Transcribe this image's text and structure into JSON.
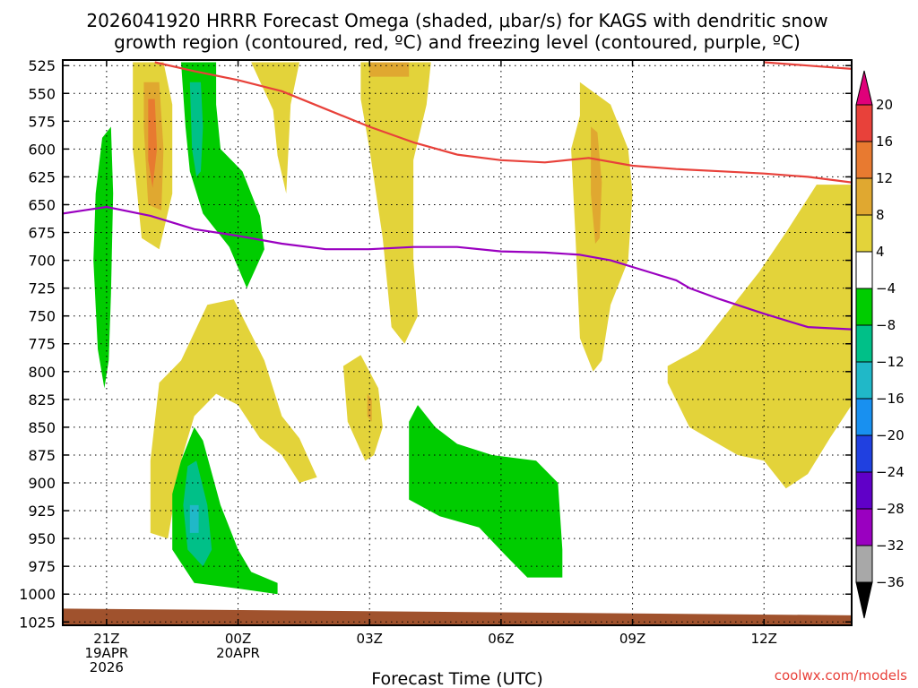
{
  "chart_data": {
    "type": "heatmap",
    "title_line1": "2026041920 HRRR Forecast Omega (shaded, μbar/s) for KAGS with dendritic snow",
    "title_line2": "growth region (contoured, red, ºC) and freezing level (contoured, purple, ºC)",
    "xlabel": "Forecast Time (UTC)",
    "credit": "coolwx.com/models",
    "x_range_hours": [
      -1.0,
      17.0
    ],
    "x_ticks": [
      {
        "hour": 0,
        "lines": [
          "21Z",
          "19APR",
          "2026"
        ]
      },
      {
        "hour": 3,
        "lines": [
          "00Z",
          "20APR"
        ]
      },
      {
        "hour": 6,
        "lines": [
          "03Z"
        ]
      },
      {
        "hour": 9,
        "lines": [
          "06Z"
        ]
      },
      {
        "hour": 12,
        "lines": [
          "09Z"
        ]
      },
      {
        "hour": 15,
        "lines": [
          "12Z"
        ]
      }
    ],
    "y_levels_hpa": [
      525,
      550,
      575,
      600,
      625,
      650,
      675,
      700,
      725,
      750,
      775,
      800,
      825,
      850,
      875,
      900,
      925,
      950,
      975,
      1000,
      1025
    ],
    "y_range_hpa": [
      520,
      1028
    ],
    "colorbar": {
      "labels": [
        "20",
        "16",
        "12",
        "8",
        "4",
        "−4",
        "−8",
        "−12",
        "−16",
        "−20",
        "−24",
        "−28",
        "−32",
        "−36"
      ],
      "colors": [
        "#e8413a",
        "#e87a30",
        "#e0a830",
        "#e3d33a",
        "#ffffff",
        "#00cc00",
        "#00c088",
        "#20b8c8",
        "#1890f0",
        "#2040e0",
        "#6000c8",
        "#9a00c0",
        "#a8a8a8"
      ],
      "top_arrow_color": "#e0007a",
      "bottom_arrow_color": "#000000"
    },
    "shaded_regions": [
      {
        "name": "yellow-a",
        "omega": 6,
        "color": "#e3d33a",
        "points": [
          [
            0.6,
            522
          ],
          [
            1.3,
            522
          ],
          [
            1.5,
            560
          ],
          [
            1.5,
            640
          ],
          [
            1.2,
            690
          ],
          [
            0.8,
            680
          ],
          [
            0.6,
            600
          ]
        ]
      },
      {
        "name": "orange-a",
        "omega": 10,
        "color": "#e0a830",
        "points": [
          [
            0.85,
            540
          ],
          [
            1.2,
            540
          ],
          [
            1.3,
            600
          ],
          [
            1.25,
            655
          ],
          [
            0.95,
            650
          ],
          [
            0.85,
            580
          ]
        ]
      },
      {
        "name": "dark-orange-a",
        "omega": 14,
        "color": "#e87a30",
        "points": [
          [
            0.95,
            555
          ],
          [
            1.1,
            555
          ],
          [
            1.15,
            600
          ],
          [
            1.05,
            635
          ],
          [
            0.95,
            610
          ]
        ]
      },
      {
        "name": "yellow-b",
        "omega": 5,
        "color": "#e3d33a",
        "points": [
          [
            3.3,
            522
          ],
          [
            4.4,
            522
          ],
          [
            4.2,
            560
          ],
          [
            4.1,
            640
          ],
          [
            3.9,
            606
          ],
          [
            3.8,
            565
          ]
        ]
      },
      {
        "name": "yellow-c",
        "omega": 5,
        "color": "#e3d33a",
        "points": [
          [
            5.8,
            522
          ],
          [
            7.4,
            522
          ],
          [
            7.3,
            560
          ],
          [
            7.0,
            610
          ],
          [
            7.0,
            700
          ],
          [
            7.1,
            750
          ],
          [
            6.8,
            775
          ],
          [
            6.5,
            760
          ],
          [
            6.3,
            680
          ],
          [
            6.0,
            600
          ],
          [
            5.8,
            555
          ]
        ]
      },
      {
        "name": "orange-c",
        "omega": 9,
        "color": "#e0a830",
        "points": [
          [
            6.0,
            522
          ],
          [
            6.9,
            522
          ],
          [
            6.9,
            535
          ],
          [
            6.0,
            535
          ]
        ]
      },
      {
        "name": "yellow-d",
        "omega": 5,
        "color": "#e3d33a",
        "points": [
          [
            10.8,
            540
          ],
          [
            11.5,
            560
          ],
          [
            11.9,
            600
          ],
          [
            12.0,
            640
          ],
          [
            11.9,
            700
          ],
          [
            11.5,
            740
          ],
          [
            11.3,
            790
          ],
          [
            11.1,
            800
          ],
          [
            10.8,
            770
          ],
          [
            10.7,
            680
          ],
          [
            10.6,
            600
          ],
          [
            10.8,
            570
          ]
        ]
      },
      {
        "name": "orange-d",
        "omega": 9,
        "color": "#e0a830",
        "points": [
          [
            11.05,
            580
          ],
          [
            11.2,
            585
          ],
          [
            11.3,
            630
          ],
          [
            11.25,
            680
          ],
          [
            11.15,
            685
          ],
          [
            11.05,
            640
          ]
        ]
      },
      {
        "name": "yellow-e",
        "omega": 5,
        "color": "#e3d33a",
        "points": [
          [
            1.7,
            790
          ],
          [
            2.3,
            740
          ],
          [
            2.9,
            735
          ],
          [
            3.6,
            790
          ],
          [
            4.0,
            840
          ],
          [
            4.4,
            860
          ],
          [
            4.8,
            895
          ],
          [
            4.4,
            900
          ],
          [
            4.0,
            875
          ],
          [
            3.5,
            860
          ],
          [
            3.0,
            830
          ],
          [
            2.5,
            820
          ],
          [
            2.0,
            840
          ],
          [
            1.7,
            880
          ],
          [
            1.4,
            950
          ],
          [
            1.0,
            945
          ],
          [
            1.0,
            880
          ],
          [
            1.2,
            810
          ]
        ]
      },
      {
        "name": "yellow-f",
        "omega": 5,
        "color": "#e3d33a",
        "points": [
          [
            5.4,
            795
          ],
          [
            5.8,
            785
          ],
          [
            6.2,
            815
          ],
          [
            6.3,
            850
          ],
          [
            6.1,
            875
          ],
          [
            5.9,
            880
          ],
          [
            5.5,
            845
          ]
        ]
      },
      {
        "name": "orange-f",
        "omega": 9,
        "color": "#e0a830",
        "points": [
          [
            5.95,
            820
          ],
          [
            6.05,
            825
          ],
          [
            6.05,
            845
          ],
          [
            5.95,
            840
          ]
        ]
      },
      {
        "name": "yellow-g",
        "omega": 5,
        "color": "#e3d33a",
        "points": [
          [
            17.0,
            632
          ],
          [
            16.2,
            632
          ],
          [
            15.5,
            675
          ],
          [
            14.9,
            710
          ],
          [
            14.3,
            740
          ],
          [
            13.5,
            780
          ],
          [
            12.8,
            795
          ],
          [
            12.8,
            810
          ],
          [
            13.3,
            850
          ],
          [
            14.4,
            875
          ],
          [
            15.0,
            880
          ],
          [
            15.5,
            905
          ],
          [
            16.0,
            892
          ],
          [
            16.5,
            860
          ],
          [
            17.0,
            830
          ]
        ]
      },
      {
        "name": "green-a",
        "omega": -6,
        "color": "#00cc00",
        "points": [
          [
            -0.1,
            590
          ],
          [
            0.1,
            580
          ],
          [
            0.15,
            640
          ],
          [
            0.1,
            730
          ],
          [
            0.05,
            790
          ],
          [
            -0.05,
            815
          ],
          [
            -0.2,
            780
          ],
          [
            -0.3,
            700
          ],
          [
            -0.25,
            640
          ]
        ]
      },
      {
        "name": "green-b",
        "omega": -6,
        "color": "#00cc00",
        "points": [
          [
            1.7,
            522
          ],
          [
            2.5,
            522
          ],
          [
            2.5,
            560
          ],
          [
            2.6,
            600
          ],
          [
            3.1,
            620
          ],
          [
            3.5,
            660
          ],
          [
            3.6,
            690
          ],
          [
            3.2,
            725
          ],
          [
            2.8,
            688
          ],
          [
            2.2,
            658
          ],
          [
            1.9,
            620
          ],
          [
            1.8,
            580
          ]
        ]
      },
      {
        "name": "teal-b",
        "omega": -10,
        "color": "#00c088",
        "points": [
          [
            1.9,
            540
          ],
          [
            2.15,
            540
          ],
          [
            2.2,
            580
          ],
          [
            2.15,
            620
          ],
          [
            2.05,
            625
          ],
          [
            1.95,
            600
          ]
        ]
      },
      {
        "name": "green-c",
        "omega": -6,
        "color": "#00cc00",
        "points": [
          [
            2.0,
            850
          ],
          [
            2.2,
            862
          ],
          [
            2.6,
            920
          ],
          [
            3.0,
            960
          ],
          [
            3.3,
            980
          ],
          [
            3.9,
            990
          ],
          [
            3.9,
            1000
          ],
          [
            3.0,
            995
          ],
          [
            2.0,
            990
          ],
          [
            1.5,
            960
          ],
          [
            1.5,
            910
          ],
          [
            1.7,
            880
          ]
        ]
      },
      {
        "name": "teal-c",
        "omega": -10,
        "color": "#00c088",
        "points": [
          [
            1.85,
            885
          ],
          [
            2.05,
            880
          ],
          [
            2.3,
            920
          ],
          [
            2.4,
            960
          ],
          [
            2.2,
            975
          ],
          [
            1.85,
            960
          ],
          [
            1.75,
            920
          ]
        ]
      },
      {
        "name": "cyan-c",
        "omega": -13,
        "color": "#20b8c8",
        "points": [
          [
            1.9,
            920
          ],
          [
            2.1,
            920
          ],
          [
            2.1,
            945
          ],
          [
            1.9,
            945
          ]
        ]
      },
      {
        "name": "green-d",
        "omega": -6,
        "color": "#00cc00",
        "points": [
          [
            6.9,
            845
          ],
          [
            7.1,
            830
          ],
          [
            7.5,
            850
          ],
          [
            8.0,
            865
          ],
          [
            8.8,
            875
          ],
          [
            9.8,
            880
          ],
          [
            10.3,
            900
          ],
          [
            10.4,
            960
          ],
          [
            10.4,
            985
          ],
          [
            9.6,
            985
          ],
          [
            9.1,
            965
          ],
          [
            8.5,
            940
          ],
          [
            7.6,
            930
          ],
          [
            6.9,
            915
          ]
        ]
      }
    ],
    "lines": [
      {
        "name": "dendritic-growth-top",
        "color": "#e8413a",
        "points": [
          [
            1.1,
            522
          ],
          [
            2.0,
            530
          ],
          [
            3.0,
            538
          ],
          [
            4.0,
            548
          ],
          [
            5.0,
            564
          ],
          [
            6.0,
            580
          ],
          [
            7.0,
            594
          ],
          [
            8.0,
            605
          ],
          [
            9.0,
            610
          ],
          [
            10.0,
            612
          ],
          [
            11.0,
            608
          ],
          [
            12.0,
            615
          ],
          [
            13.0,
            618
          ],
          [
            14.0,
            620
          ],
          [
            15.0,
            622
          ],
          [
            16.0,
            625
          ],
          [
            17.0,
            630
          ]
        ]
      },
      {
        "name": "dendritic-growth-upper",
        "color": "#e8413a",
        "points": [
          [
            15.0,
            522
          ],
          [
            16.0,
            525
          ],
          [
            17.0,
            528
          ]
        ]
      },
      {
        "name": "freezing-level",
        "color": "#9a00c0",
        "points": [
          [
            -1.0,
            658
          ],
          [
            -0.5,
            655
          ],
          [
            0.0,
            652
          ],
          [
            1.0,
            660
          ],
          [
            2.0,
            672
          ],
          [
            3.0,
            678
          ],
          [
            4.0,
            685
          ],
          [
            5.0,
            690
          ],
          [
            6.0,
            690
          ],
          [
            7.0,
            688
          ],
          [
            8.0,
            688
          ],
          [
            9.0,
            692
          ],
          [
            10.0,
            693
          ],
          [
            10.8,
            695
          ],
          [
            11.5,
            700
          ],
          [
            12.5,
            712
          ],
          [
            13.0,
            718
          ],
          [
            13.3,
            725
          ],
          [
            14.0,
            735
          ],
          [
            15.0,
            748
          ],
          [
            16.0,
            760
          ],
          [
            17.0,
            762
          ]
        ]
      }
    ],
    "ground_color": "#a0522d",
    "ground_top_hpa": [
      1013,
      1019
    ]
  }
}
